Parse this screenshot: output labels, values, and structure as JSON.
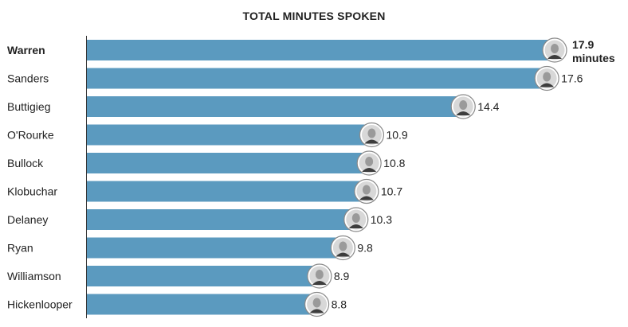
{
  "chart_data": {
    "type": "bar",
    "orientation": "horizontal",
    "title": "TOTAL MINUTES SPOKEN",
    "categories": [
      "Warren",
      "Sanders",
      "Buttigieg",
      "O'Rourke",
      "Bullock",
      "Klobuchar",
      "Delaney",
      "Ryan",
      "Williamson",
      "Hickenlooper"
    ],
    "values": [
      17.9,
      17.6,
      14.4,
      10.9,
      10.8,
      10.7,
      10.3,
      9.8,
      8.9,
      8.8
    ],
    "value_labels": [
      "17.9",
      "17.6",
      "14.4",
      "10.9",
      "10.8",
      "10.7",
      "10.3",
      "9.8",
      "8.9",
      "8.8"
    ],
    "first_value_unit": "minutes",
    "highlight_category": "Warren",
    "xlim": [
      0,
      17.9
    ],
    "grid": false,
    "bar_color": "#5b9abf",
    "icons": [
      "portrait-icon-warren",
      "portrait-icon-sanders",
      "portrait-icon-buttigieg",
      "portrait-icon-orourke",
      "portrait-icon-bullock",
      "portrait-icon-klobuchar",
      "portrait-icon-delaney",
      "portrait-icon-ryan",
      "portrait-icon-williamson",
      "portrait-icon-hickenlooper"
    ]
  }
}
